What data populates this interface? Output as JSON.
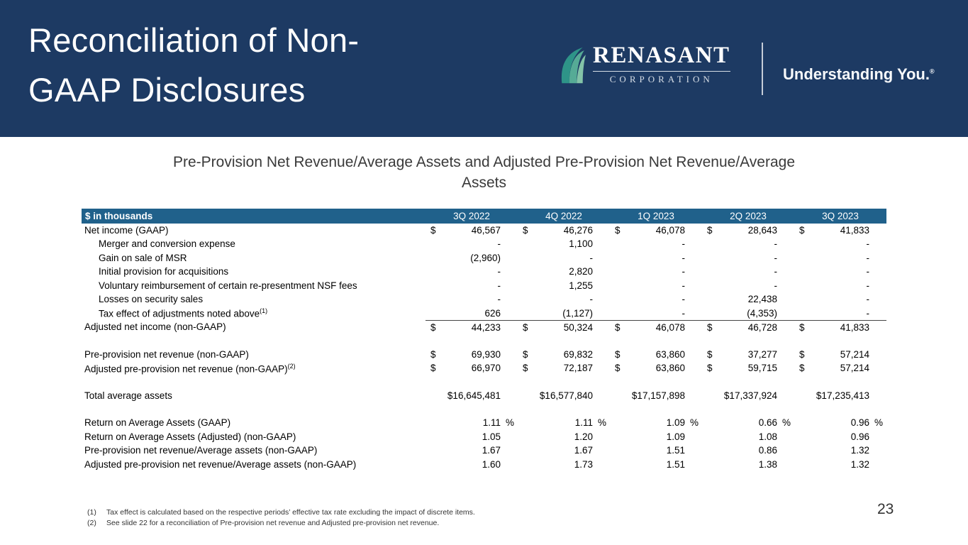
{
  "colors": {
    "navy": "#1d3a63",
    "tableHead": "#20618b",
    "teal": "#3f9c8c"
  },
  "slide": {
    "title_line1": "Reconciliation of Non-",
    "title_line2": "GAAP Disclosures",
    "subtitle": "Pre-Provision Net Revenue/Average Assets and Adjusted Pre-Provision Net Revenue/Average Assets",
    "page_number": "23"
  },
  "brand": {
    "name": "RENASANT",
    "subname": "CORPORATION",
    "tagline": "Understanding You.",
    "registered": "®"
  },
  "table": {
    "header": {
      "label": "$ in thousands",
      "periods": [
        "3Q 2022",
        "4Q 2022",
        "1Q 2023",
        "2Q 2023",
        "3Q 2023"
      ]
    },
    "rows": [
      {
        "label": "Net income (GAAP)",
        "dollar": true,
        "values": [
          "46,567",
          "46,276",
          "46,078",
          "28,643",
          "41,833"
        ]
      },
      {
        "label": "Merger and conversion expense",
        "indent": true,
        "values": [
          "-",
          "1,100",
          "-",
          "-",
          "-"
        ]
      },
      {
        "label": "Gain on sale of MSR",
        "indent": true,
        "values": [
          "(2,960)",
          "-",
          "-",
          "-",
          "-"
        ]
      },
      {
        "label": "Initial provision for acquisitions",
        "indent": true,
        "values": [
          "-",
          "2,820",
          "-",
          "-",
          "-"
        ]
      },
      {
        "label": "Voluntary reimbursement of certain re-presentment NSF fees",
        "indent": true,
        "values": [
          "-",
          "1,255",
          "-",
          "-",
          "-"
        ]
      },
      {
        "label": "Losses on security sales",
        "indent": true,
        "values": [
          "-",
          "-",
          "-",
          "22,438",
          "-"
        ]
      },
      {
        "label": "Tax effect of adjustments noted above",
        "sup": "(1)",
        "indent": true,
        "rule_below": true,
        "values": [
          "626",
          "(1,127)",
          "-",
          "(4,353)",
          "-"
        ]
      },
      {
        "label": "Adjusted net income (non-GAAP)",
        "dollar": true,
        "values": [
          "44,233",
          "50,324",
          "46,078",
          "46,728",
          "41,833"
        ]
      },
      {
        "spacer": true
      },
      {
        "label": "Pre-provision net revenue (non-GAAP)",
        "dollar": true,
        "values": [
          "69,930",
          "69,832",
          "63,860",
          "37,277",
          "57,214"
        ]
      },
      {
        "label": "Adjusted pre-provision net revenue (non-GAAP)",
        "sup": "(2)",
        "dollar": true,
        "values": [
          "66,970",
          "72,187",
          "63,860",
          "59,715",
          "57,214"
        ]
      },
      {
        "spacer": true
      },
      {
        "label": "Total average assets",
        "values": [
          "$16,645,481",
          "$16,577,840",
          "$17,157,898",
          "$17,337,924",
          "$17,235,413"
        ]
      },
      {
        "spacer": true
      },
      {
        "label": "Return on Average Assets (GAAP)",
        "percent": true,
        "values": [
          "1.11",
          "1.11",
          "1.09",
          "0.66",
          "0.96"
        ]
      },
      {
        "label": "Return on Average Assets (Adjusted) (non-GAAP)",
        "values": [
          "1.05",
          "1.20",
          "1.09",
          "1.08",
          "0.96"
        ]
      },
      {
        "label": "Pre-provision net revenue/Average assets (non-GAAP)",
        "values": [
          "1.67",
          "1.67",
          "1.51",
          "0.86",
          "1.32"
        ]
      },
      {
        "label": "Adjusted pre-provision net revenue/Average assets (non-GAAP)",
        "values": [
          "1.60",
          "1.73",
          "1.51",
          "1.38",
          "1.32"
        ]
      }
    ]
  },
  "footnotes": [
    {
      "num": "(1)",
      "text": "Tax effect is calculated based on the respective periods’ effective tax rate excluding the impact of discrete items."
    },
    {
      "num": "(2)",
      "text": "See slide 22 for a reconciliation of Pre-provision net revenue and Adjusted pre-provision net revenue."
    }
  ]
}
